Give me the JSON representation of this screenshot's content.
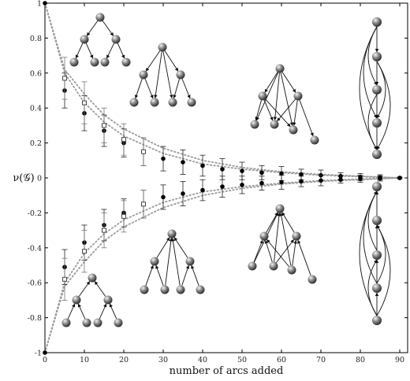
{
  "chart_data": {
    "type": "scatter",
    "xlabel": "number of arcs added",
    "ylabel": "ν(𝒢)",
    "xlim": [
      0,
      92
    ],
    "ylim": [
      -1,
      1
    ],
    "xticks": [
      "0",
      "10",
      "20",
      "30",
      "40",
      "50",
      "60",
      "70",
      "80",
      "90"
    ],
    "yticks": [
      "-1",
      "-0.8",
      "-0.6",
      "-0.4",
      "-0.2",
      "0",
      "0.2",
      "0.4",
      "0.6",
      "0.8",
      "1"
    ],
    "grid": false,
    "series": [
      {
        "marker": "filled-circle",
        "x": [
          0,
          5,
          10,
          15,
          20,
          25,
          30,
          35,
          40,
          45,
          50,
          55,
          60,
          65,
          70,
          75,
          80,
          85,
          90
        ],
        "y": [
          1.0,
          0.5,
          0.37,
          0.27,
          0.2,
          0.15,
          0.11,
          0.09,
          0.07,
          0.05,
          0.04,
          0.03,
          0.025,
          0.02,
          0.015,
          0.01,
          0.005,
          0.003,
          0.0
        ],
        "err": [
          0,
          0.1,
          0.1,
          0.09,
          0.08,
          0.08,
          0.07,
          0.07,
          0.06,
          0.06,
          0.05,
          0.04,
          0.04,
          0.03,
          0.03,
          0.02,
          0.02,
          0.015,
          0.005
        ]
      },
      {
        "marker": "open-square",
        "x": [
          5,
          10,
          15,
          20,
          25
        ],
        "y": [
          0.57,
          0.43,
          0.3,
          0.22,
          0.15
        ],
        "err": [
          0.12,
          0.12,
          0.1,
          0.09,
          0.08
        ]
      },
      {
        "marker": "filled-circle",
        "x": [
          0,
          5,
          10,
          15,
          20,
          25,
          30,
          35,
          40,
          45,
          50,
          55,
          60,
          65,
          70,
          75,
          80,
          85,
          90
        ],
        "y": [
          -1.0,
          -0.51,
          -0.37,
          -0.27,
          -0.2,
          -0.15,
          -0.11,
          -0.09,
          -0.07,
          -0.05,
          -0.04,
          -0.03,
          -0.025,
          -0.02,
          -0.015,
          -0.01,
          -0.005,
          -0.003,
          0.0
        ],
        "err": [
          0,
          0.1,
          0.1,
          0.09,
          0.08,
          0.08,
          0.07,
          0.07,
          0.06,
          0.06,
          0.05,
          0.04,
          0.04,
          0.03,
          0.03,
          0.02,
          0.02,
          0.015,
          0.005
        ]
      },
      {
        "marker": "open-square",
        "x": [
          5,
          10,
          15,
          20,
          25
        ],
        "y": [
          -0.58,
          -0.42,
          -0.3,
          -0.22,
          -0.15
        ],
        "err": [
          0.12,
          0.12,
          0.1,
          0.09,
          0.08
        ]
      }
    ],
    "curves": [
      {
        "style": "dotted",
        "x": [
          0,
          5,
          10,
          15,
          20,
          30,
          40,
          50,
          60,
          70,
          80,
          90
        ],
        "y": [
          1.0,
          0.6,
          0.43,
          0.32,
          0.24,
          0.14,
          0.08,
          0.05,
          0.03,
          0.015,
          0.007,
          0.0
        ]
      },
      {
        "style": "dotted",
        "x": [
          0,
          5,
          10,
          15,
          20,
          30,
          40,
          50,
          60,
          70,
          80,
          90
        ],
        "y": [
          1.0,
          0.62,
          0.48,
          0.36,
          0.28,
          0.17,
          0.1,
          0.06,
          0.035,
          0.02,
          0.01,
          0.0
        ]
      },
      {
        "style": "dotted",
        "x": [
          0,
          5,
          10,
          15,
          20,
          30,
          40,
          50,
          60,
          70,
          80,
          90
        ],
        "y": [
          -1.0,
          -0.6,
          -0.43,
          -0.32,
          -0.24,
          -0.14,
          -0.08,
          -0.05,
          -0.03,
          -0.015,
          -0.007,
          0.0
        ]
      },
      {
        "style": "dotted",
        "x": [
          0,
          5,
          10,
          15,
          20,
          30,
          40,
          50,
          60,
          70,
          80,
          90
        ],
        "y": [
          -1.0,
          -0.62,
          -0.48,
          -0.36,
          -0.28,
          -0.17,
          -0.1,
          -0.06,
          -0.035,
          -0.02,
          -0.01,
          0.0
        ]
      }
    ],
    "insets": [
      "binary tree (top-left)",
      "tree with extra arcs (top)",
      "dense tree (upper middle)",
      "transitive chain (top-right)",
      "reversed binary tree (bottom-left)",
      "reversed tree with extra arcs (bottom)",
      "reversed dense tree (lower middle)",
      "reversed transitive chain (bottom-right)"
    ]
  }
}
